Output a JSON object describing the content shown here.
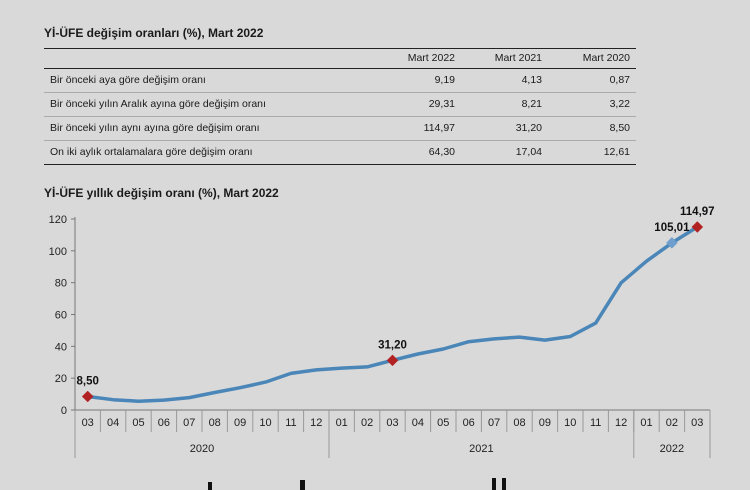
{
  "table": {
    "title": "Yİ-ÜFE değişim oranları (%), Mart 2022",
    "headers": [
      "",
      "Mart 2022",
      "Mart 2021",
      "Mart 2020"
    ],
    "rows": [
      {
        "label": "Bir önceki aya göre değişim oranı",
        "values": [
          "9,19",
          "4,13",
          "0,87"
        ]
      },
      {
        "label": "Bir önceki yılın Aralık ayına göre değişim oranı",
        "values": [
          "29,31",
          "8,21",
          "3,22"
        ]
      },
      {
        "label": "Bir önceki yılın aynı ayına göre değişim oranı",
        "values": [
          "114,97",
          "31,20",
          "8,50"
        ]
      },
      {
        "label": "On iki aylık ortalamalara göre değişim oranı",
        "values": [
          "64,30",
          "17,04",
          "12,61"
        ]
      }
    ]
  },
  "chart_data": {
    "type": "line",
    "title": "Yİ-ÜFE yıllık değişim oranı (%), Mart 2022",
    "xlabel": "",
    "ylabel": "",
    "ylim": [
      0,
      120
    ],
    "yticks": [
      "0",
      "20",
      "40",
      "60",
      "80",
      "100",
      "120"
    ],
    "grid": false,
    "categories": [
      "03",
      "04",
      "05",
      "06",
      "07",
      "08",
      "09",
      "10",
      "11",
      "12",
      "01",
      "02",
      "03",
      "04",
      "05",
      "06",
      "07",
      "08",
      "09",
      "10",
      "11",
      "12",
      "01",
      "02",
      "03"
    ],
    "year_groups": [
      {
        "label": "2020",
        "count": 10
      },
      {
        "label": "2021",
        "count": 12
      },
      {
        "label": "2022",
        "count": 3
      }
    ],
    "series": [
      {
        "values": [
          8.5,
          6.5,
          5.5,
          6.2,
          7.8,
          11.0,
          14.0,
          17.5,
          23.0,
          25.2,
          26.3,
          27.1,
          31.2,
          35.2,
          38.3,
          42.9,
          44.7,
          45.8,
          43.9,
          46.2,
          54.6,
          79.9,
          93.5,
          105.01,
          114.97
        ],
        "color": "#4a86b8"
      }
    ],
    "annotations": [
      {
        "index": 0,
        "label": "8,50",
        "marker": "diamond",
        "color": "#b22222"
      },
      {
        "index": 12,
        "label": "31,20",
        "marker": "diamond",
        "color": "#b22222"
      },
      {
        "index": 23,
        "label": "105,01",
        "marker": "diamond",
        "color": "#6f9fcc"
      },
      {
        "index": 24,
        "label": "114,97",
        "marker": "diamond",
        "color": "#b22222"
      }
    ]
  }
}
